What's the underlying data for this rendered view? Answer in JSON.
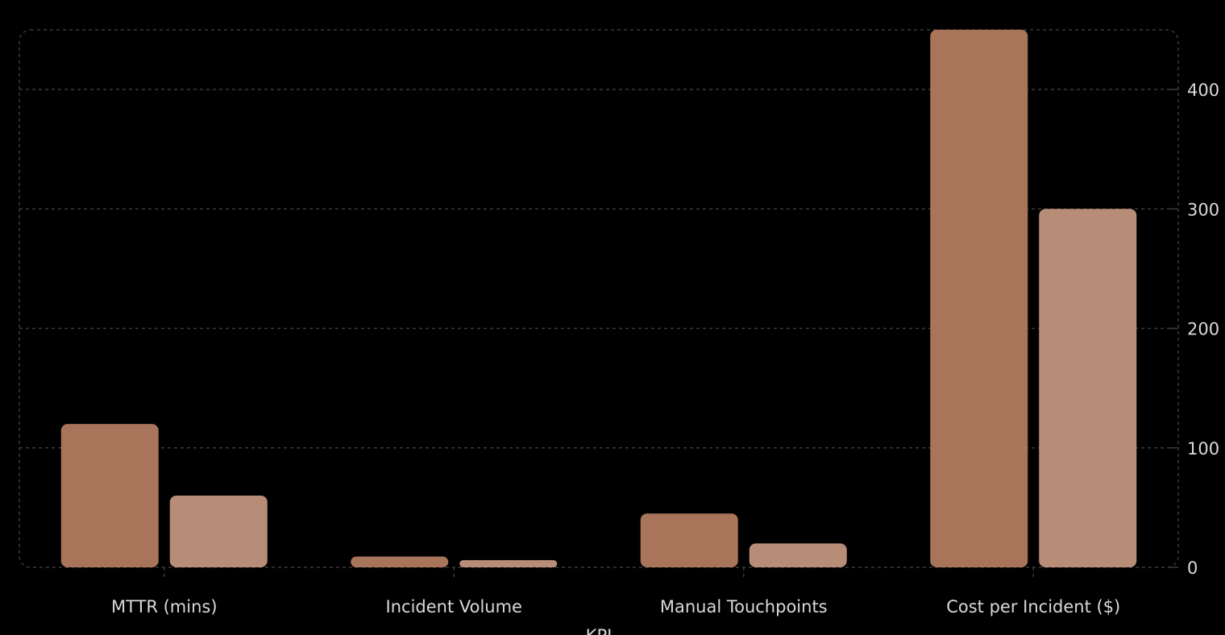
{
  "chart_data": {
    "type": "bar",
    "categories": [
      "MTTR (mins)",
      "Incident Volume",
      "Manual Touchpoints",
      "Cost per Incident ($)"
    ],
    "series": [
      {
        "values": [
          120,
          9,
          45,
          450
        ]
      },
      {
        "values": [
          60,
          6,
          20,
          300
        ]
      }
    ],
    "xlabel": "KPI",
    "ylabel": "",
    "ylim": [
      0,
      450
    ],
    "yticks": [
      0,
      100,
      200,
      300,
      400
    ],
    "yaxis_side": "right",
    "grid": true,
    "legend": "none"
  },
  "colors": {
    "background": "#000000",
    "series_1": "#a8745a",
    "series_2": "#b88d77",
    "grid": "#3a3a3a",
    "text": "#d9d9d9"
  }
}
